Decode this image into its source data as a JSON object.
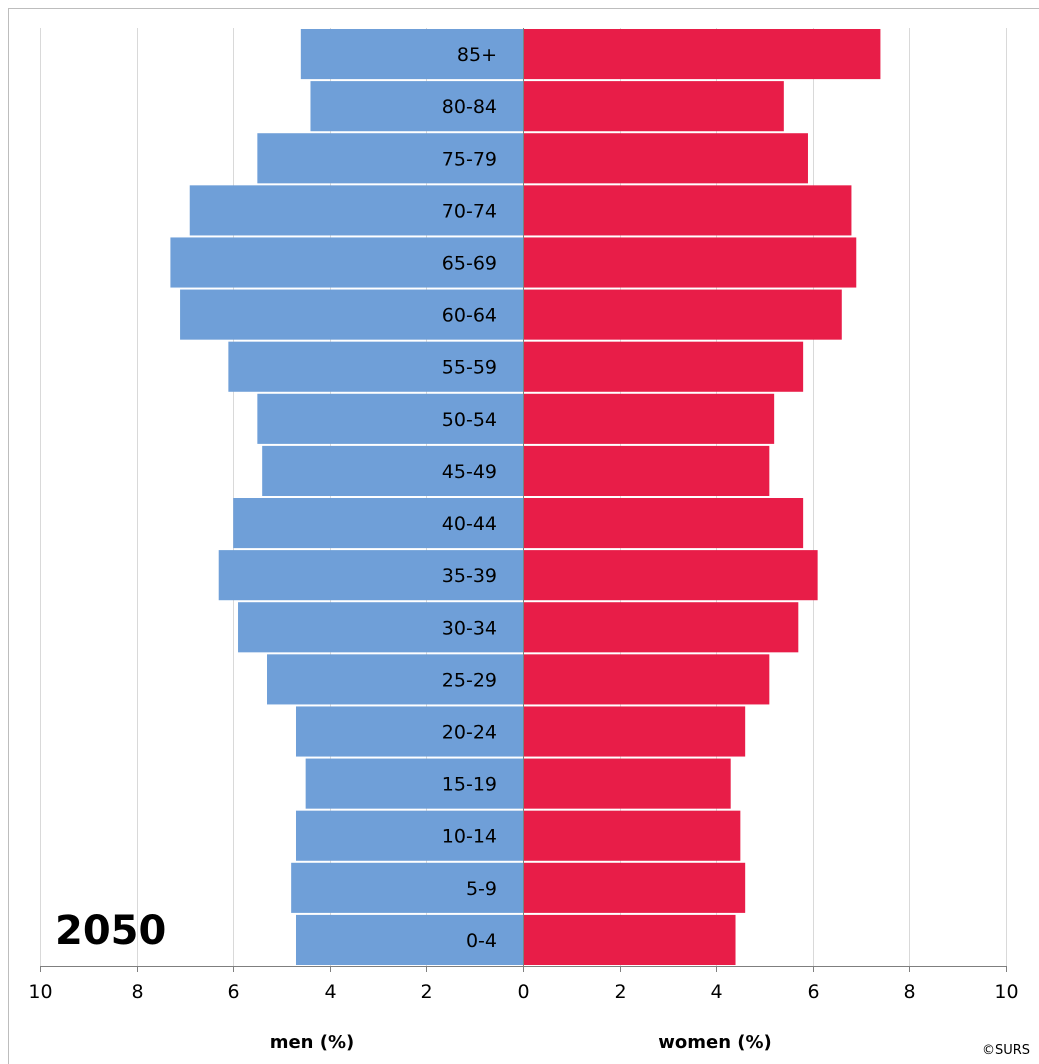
{
  "chart_data": {
    "type": "bar",
    "orientation": "horizontal",
    "layout": "population-pyramid",
    "annotation": "2050",
    "credit": "©SURS",
    "categories": [
      "85+",
      "80-84",
      "75-79",
      "70-74",
      "65-69",
      "60-64",
      "55-59",
      "50-54",
      "45-49",
      "40-44",
      "35-39",
      "30-34",
      "25-29",
      "20-24",
      "15-19",
      "10-14",
      "5-9",
      "0-4"
    ],
    "series": [
      {
        "name": "men (%)",
        "side": "left",
        "color": "#6f9fd8",
        "values": [
          4.6,
          4.4,
          5.5,
          6.9,
          7.3,
          7.1,
          6.1,
          5.5,
          5.4,
          6.0,
          6.3,
          5.9,
          5.3,
          4.7,
          4.5,
          4.7,
          4.8,
          4.7
        ]
      },
      {
        "name": "women (%)",
        "side": "right",
        "color": "#e81d48",
        "values": [
          7.4,
          5.4,
          5.9,
          6.8,
          6.9,
          6.6,
          5.8,
          5.2,
          5.1,
          5.8,
          6.1,
          5.7,
          5.1,
          4.6,
          4.3,
          4.5,
          4.6,
          4.4
        ]
      }
    ],
    "xlim": [
      -10,
      10
    ],
    "ticks": [
      "10",
      "8",
      "6",
      "4",
      "2",
      "0",
      "2",
      "4",
      "6",
      "8",
      "10"
    ],
    "xlabel_left": "men (%)",
    "xlabel_right": "women (%)",
    "grid": true
  }
}
